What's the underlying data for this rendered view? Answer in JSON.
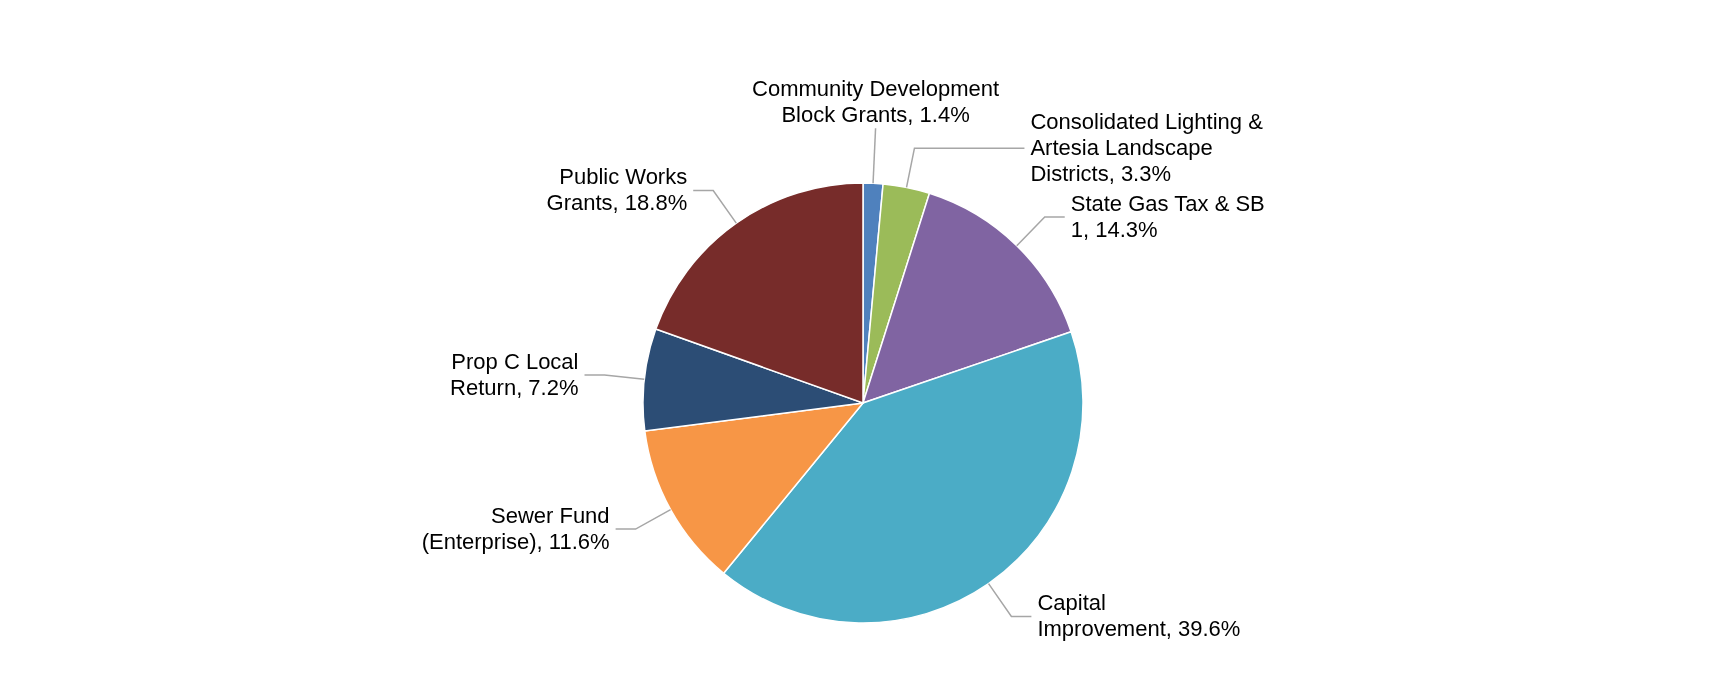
{
  "chart_data": {
    "type": "pie",
    "categories": [
      "Community Development Block Grants",
      "Consolidated Lighting & Artesia Landscape Districts",
      "State Gas Tax & SB 1",
      "Capital Improvement",
      "Sewer Fund (Enterprise)",
      "Prop C Local Return",
      "Public Works Grants"
    ],
    "values": [
      1.4,
      3.3,
      14.3,
      39.6,
      11.6,
      7.2,
      18.8
    ],
    "value_labels": [
      "1.4%",
      "3.3%",
      "14.3%",
      "39.6%",
      "11.6%",
      "7.2%",
      "18.8%"
    ],
    "colors": [
      "#4f81bd",
      "#9bbb59",
      "#8064a2",
      "#4bacc6",
      "#f79646",
      "#2c4d75",
      "#772c2a"
    ]
  }
}
